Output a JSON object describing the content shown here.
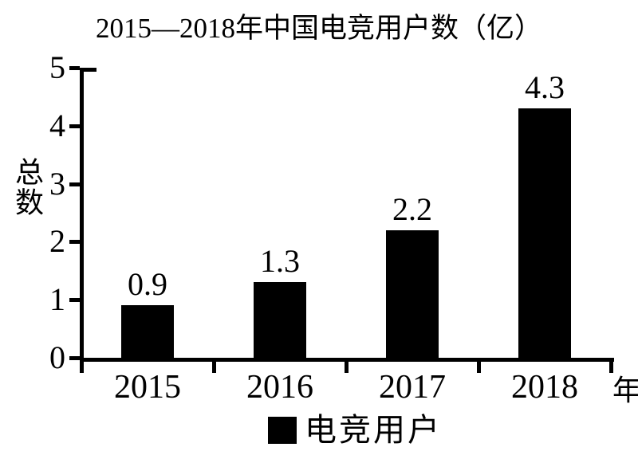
{
  "chart_data": {
    "type": "bar",
    "title": "2015—2018年中国电竞用户数（亿）",
    "categories": [
      "2015",
      "2016",
      "2017",
      "2018"
    ],
    "values": [
      0.9,
      1.3,
      2.2,
      4.3
    ],
    "series_name": "电竞用户",
    "ylabel": "总数",
    "xlabel": "年",
    "yticks": [
      0,
      1,
      2,
      3,
      4,
      5
    ],
    "ylim": [
      0,
      5
    ],
    "bar_color": "#000000",
    "background_color": "#ffffff",
    "grid": "off",
    "value_labels": "above-bars",
    "legend_position": "bottom-center"
  }
}
